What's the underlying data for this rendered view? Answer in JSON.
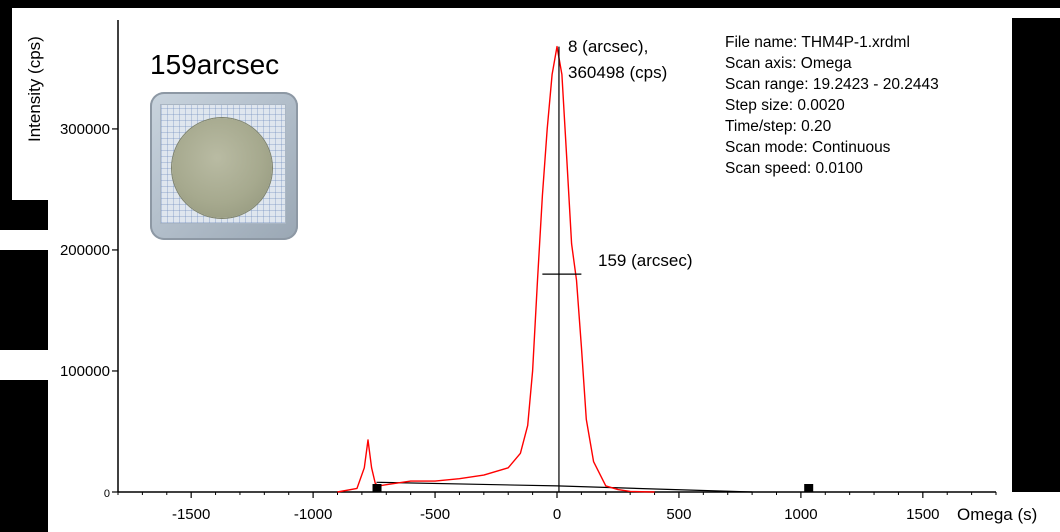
{
  "chart_data": {
    "type": "line",
    "title": "159arcsec",
    "xlabel": "Omega (s)",
    "ylabel": "Intensity (cps)",
    "xlim": [
      -1800,
      1800
    ],
    "ylim": [
      0,
      390000
    ],
    "xticks": [
      -1500,
      -1000,
      -500,
      0,
      500,
      1000,
      1500
    ],
    "xtick_labels": [
      "-1500",
      "-1000",
      "-500",
      "0",
      "500",
      "1000",
      "1500"
    ],
    "yticks": [
      0,
      100000,
      200000,
      300000
    ],
    "ytick_labels": [
      "0",
      "100000",
      "200000",
      "300000"
    ],
    "grid": false,
    "series": [
      {
        "color": "#ff0000",
        "x": [
          -900,
          -820,
          -790,
          -775,
          -760,
          -745,
          -730,
          -700,
          -600,
          -500,
          -400,
          -300,
          -200,
          -150,
          -120,
          -100,
          -80,
          -60,
          -40,
          -20,
          0,
          20,
          40,
          60,
          80,
          100,
          120,
          150,
          200,
          250,
          300,
          400
        ],
        "y": [
          0,
          3000,
          20000,
          43000,
          20000,
          7000,
          5000,
          6000,
          9000,
          9000,
          11000,
          14000,
          20000,
          32000,
          55000,
          100000,
          175000,
          245000,
          300000,
          345000,
          368000,
          345000,
          275000,
          205000,
          175000,
          120000,
          60000,
          25000,
          5000,
          2000,
          500,
          0
        ]
      }
    ],
    "peak_marker": {
      "x": 8,
      "y": 368000
    },
    "fwhm_marker": {
      "x_left": -60,
      "x_right": 100,
      "y": 180000
    },
    "baseline": {
      "x": [
        -740,
        0,
        800
      ],
      "y": [
        8000,
        5000,
        0
      ]
    },
    "markers_x": [
      -740,
      1030
    ],
    "annotations": {
      "peak_line1": "8 (arcsec),",
      "peak_line2": "360498 (cps)",
      "fwhm_label": "159 (arcsec)"
    },
    "info": [
      "File name: THM4P-1.xrdml",
      "Scan axis: Omega",
      "Scan range: 19.2423 - 20.2443",
      "Step size: 0.0020",
      "Time/step: 0.20",
      "Scan mode: Continuous",
      "Scan speed: 0.0100"
    ]
  },
  "colors": {
    "curve": "#ff0000",
    "axis": "#000000",
    "frame": "#000000"
  }
}
